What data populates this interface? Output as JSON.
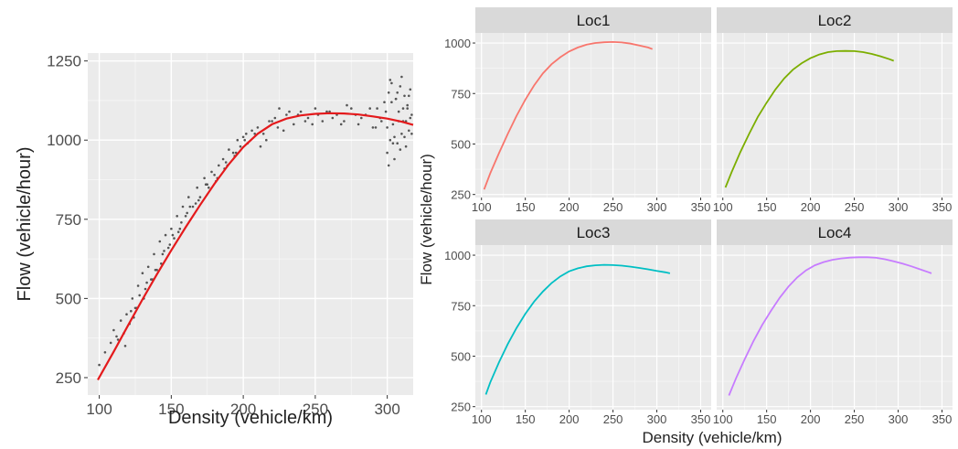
{
  "chart_data": [
    {
      "type": "scatter",
      "xlabel": "Density (vehicle/km)",
      "ylabel": "Flow (vehicle/hour)",
      "xlim": [
        92,
        318
      ],
      "ylim": [
        195,
        1275
      ],
      "xticks": [
        100,
        150,
        200,
        250,
        300
      ],
      "yticks": [
        250,
        500,
        750,
        1000,
        1250
      ],
      "grid": true,
      "points_color": "#555555",
      "curve_color": "#e41a1c",
      "curve": {
        "x": [
          99,
          110,
          120,
          130,
          140,
          150,
          160,
          170,
          180,
          190,
          200,
          210,
          220,
          230,
          240,
          250,
          260,
          270,
          280,
          290,
          300,
          310,
          318
        ],
        "y": [
          243,
          332,
          415,
          497,
          576,
          652,
          725,
          795,
          862,
          924,
          978,
          1020,
          1050,
          1068,
          1078,
          1083,
          1085,
          1084,
          1081,
          1075,
          1068,
          1058,
          1048
        ]
      },
      "scatter": {
        "x": [
          100,
          104,
          108,
          110,
          113,
          115,
          117,
          119,
          121,
          123,
          125,
          127,
          128,
          130,
          132,
          134,
          136,
          138,
          140,
          142,
          144,
          146,
          148,
          150,
          152,
          154,
          156,
          158,
          160,
          162,
          165,
          168,
          170,
          173,
          176,
          178,
          180,
          183,
          186,
          188,
          190,
          193,
          196,
          198,
          200,
          203,
          206,
          210,
          214,
          218,
          222,
          225,
          230,
          235,
          240,
          245,
          250,
          255,
          260,
          265,
          270,
          275,
          280,
          285,
          290,
          293,
          296,
          298,
          300,
          301,
          302,
          303,
          304,
          305,
          306,
          307,
          308,
          309,
          310,
          311,
          312,
          313,
          314,
          315,
          316,
          317,
          118,
          124,
          131,
          137,
          143,
          149,
          155,
          161,
          167,
          174,
          181,
          187,
          194,
          201,
          208,
          216,
          224,
          232,
          243,
          252,
          262,
          272,
          282,
          292,
          299,
          301,
          303,
          305,
          307,
          309,
          311,
          313,
          315,
          317,
          112,
          122,
          126,
          133,
          139,
          145,
          151,
          157,
          163,
          169,
          175,
          182,
          189,
          195,
          202,
          212,
          220,
          228,
          238,
          248,
          258,
          268,
          278,
          288,
          295,
          300,
          302,
          304,
          306,
          308,
          310,
          312,
          314,
          316
        ],
        "y": [
          290,
          330,
          360,
          400,
          370,
          430,
          390,
          450,
          420,
          500,
          470,
          540,
          510,
          580,
          530,
          600,
          560,
          640,
          590,
          680,
          640,
          700,
          660,
          720,
          690,
          760,
          720,
          790,
          760,
          820,
          790,
          850,
          820,
          880,
          850,
          900,
          890,
          920,
          940,
          930,
          970,
          960,
          1000,
          980,
          1010,
          990,
          1030,
          1040,
          1020,
          1060,
          1070,
          1100,
          1080,
          1050,
          1090,
          1070,
          1100,
          1060,
          1090,
          1080,
          1060,
          1100,
          1050,
          1080,
          1040,
          1100,
          1060,
          1120,
          960,
          1150,
          1000,
          1180,
          1050,
          940,
          1130,
          990,
          1090,
          1170,
          1020,
          1060,
          1140,
          980,
          1110,
          1030,
          1160,
          1080,
          350,
          440,
          500,
          560,
          610,
          670,
          710,
          770,
          800,
          860,
          870,
          910,
          950,
          1000,
          1020,
          1000,
          1040,
          1090,
          1060,
          1080,
          1070,
          1110,
          1070,
          1040,
          1090,
          920,
          1120,
          1010,
          1150,
          970,
          1100,
          1060,
          1140,
          1020,
          380,
          460,
          470,
          550,
          590,
          650,
          700,
          740,
          790,
          810,
          860,
          880,
          920,
          960,
          1020,
          980,
          1060,
          1030,
          1080,
          1050,
          1090,
          1050,
          1080,
          1100,
          1070,
          1040,
          1190,
          990,
          1130,
          1060,
          1200,
          1010,
          1100,
          1070
        ]
      }
    },
    {
      "type": "line",
      "facets": [
        "Loc1",
        "Loc2",
        "Loc3",
        "Loc4"
      ],
      "xlabel": "Density (vehicle/km)",
      "ylabel": "Flow (vehicle/hour)",
      "xlim": [
        93,
        362
      ],
      "ylim": [
        235,
        1050
      ],
      "xticks": [
        100,
        150,
        200,
        250,
        300,
        350
      ],
      "yticks": [
        250,
        500,
        750,
        1000
      ],
      "grid": true,
      "series": [
        {
          "name": "Loc1",
          "color": "#f8766d",
          "x": [
            103,
            110,
            120,
            130,
            140,
            150,
            160,
            170,
            180,
            190,
            200,
            210,
            220,
            230,
            240,
            250,
            260,
            270,
            280,
            290,
            295
          ],
          "y": [
            275,
            355,
            455,
            550,
            640,
            720,
            790,
            850,
            895,
            930,
            958,
            978,
            992,
            1000,
            1004,
            1005,
            1003,
            997,
            988,
            978,
            970
          ]
        },
        {
          "name": "Loc2",
          "color": "#7cae00",
          "x": [
            103,
            110,
            120,
            130,
            140,
            150,
            160,
            170,
            180,
            190,
            200,
            210,
            220,
            230,
            240,
            250,
            260,
            270,
            280,
            290,
            295
          ],
          "y": [
            285,
            360,
            460,
            550,
            635,
            705,
            770,
            825,
            868,
            900,
            925,
            943,
            955,
            960,
            961,
            960,
            955,
            946,
            934,
            920,
            912
          ]
        },
        {
          "name": "Loc3",
          "color": "#00bfc4",
          "x": [
            105,
            110,
            120,
            130,
            140,
            150,
            160,
            170,
            180,
            190,
            200,
            210,
            220,
            230,
            240,
            250,
            260,
            270,
            280,
            290,
            300,
            310,
            315
          ],
          "y": [
            310,
            370,
            470,
            560,
            640,
            710,
            770,
            820,
            862,
            895,
            920,
            935,
            945,
            950,
            952,
            951,
            948,
            943,
            937,
            930,
            922,
            915,
            910
          ]
        },
        {
          "name": "Loc4",
          "color": "#c77cff",
          "x": [
            107,
            115,
            125,
            135,
            145,
            155,
            165,
            175,
            185,
            195,
            205,
            215,
            225,
            235,
            245,
            255,
            265,
            275,
            285,
            295,
            305,
            315,
            325,
            335,
            338
          ],
          "y": [
            305,
            390,
            485,
            575,
            655,
            725,
            790,
            845,
            890,
            925,
            950,
            966,
            977,
            984,
            988,
            990,
            990,
            987,
            980,
            970,
            958,
            945,
            930,
            915,
            910
          ]
        }
      ]
    }
  ]
}
